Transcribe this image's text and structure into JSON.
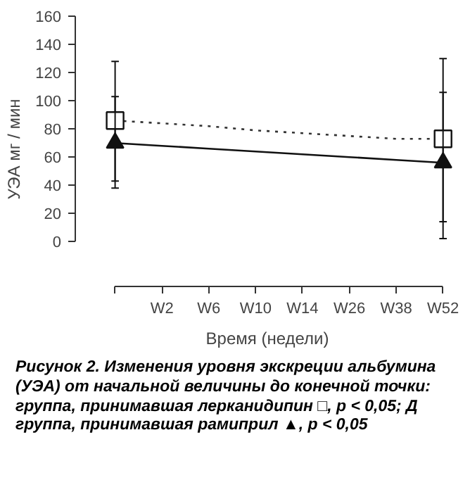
{
  "chart_data": {
    "type": "line",
    "ylabel": "УЭА мг / мин",
    "xlabel": "Время (недели)",
    "categories": [
      null,
      "W2",
      "W6",
      "W10",
      "W14",
      "W26",
      "W38",
      "W52"
    ],
    "ylim": [
      0,
      160
    ],
    "yticks": [
      0,
      20,
      40,
      60,
      80,
      100,
      120,
      140,
      160
    ],
    "grid": false,
    "series": [
      {
        "color": "#333333",
        "line_style": "dotted",
        "marker": "none",
        "values": [
          86,
          84,
          82,
          79,
          77,
          75,
          73,
          73
        ]
      },
      {
        "color": "#111111",
        "line_style": "solid",
        "marker": "none",
        "values": [
          70,
          68,
          66,
          64,
          62,
          60,
          58,
          56
        ]
      },
      {
        "type": "scatter",
        "color": "#111111",
        "marker": "square",
        "values": [
          86,
          null,
          null,
          null,
          null,
          null,
          null,
          73
        ],
        "errors": [
          [
            43,
            128
          ],
          null,
          null,
          null,
          null,
          null,
          null,
          [
            14,
            130
          ]
        ]
      },
      {
        "type": "scatter",
        "color": "#111111",
        "marker": "triangle",
        "values": [
          70,
          null,
          null,
          null,
          null,
          null,
          null,
          56
        ],
        "errors": [
          [
            38,
            103
          ],
          null,
          null,
          null,
          null,
          null,
          null,
          [
            2,
            106
          ]
        ]
      }
    ],
    "annotations": [
      "Рисунок 2. Изменения уровня экскреции альбумина (УЭА) от начальной величины до конечной точки: группа, принимавшая лерканидипин □, p < 0,05; Д группа, принимавшая рамиприл ▲, p < 0,05"
    ]
  }
}
